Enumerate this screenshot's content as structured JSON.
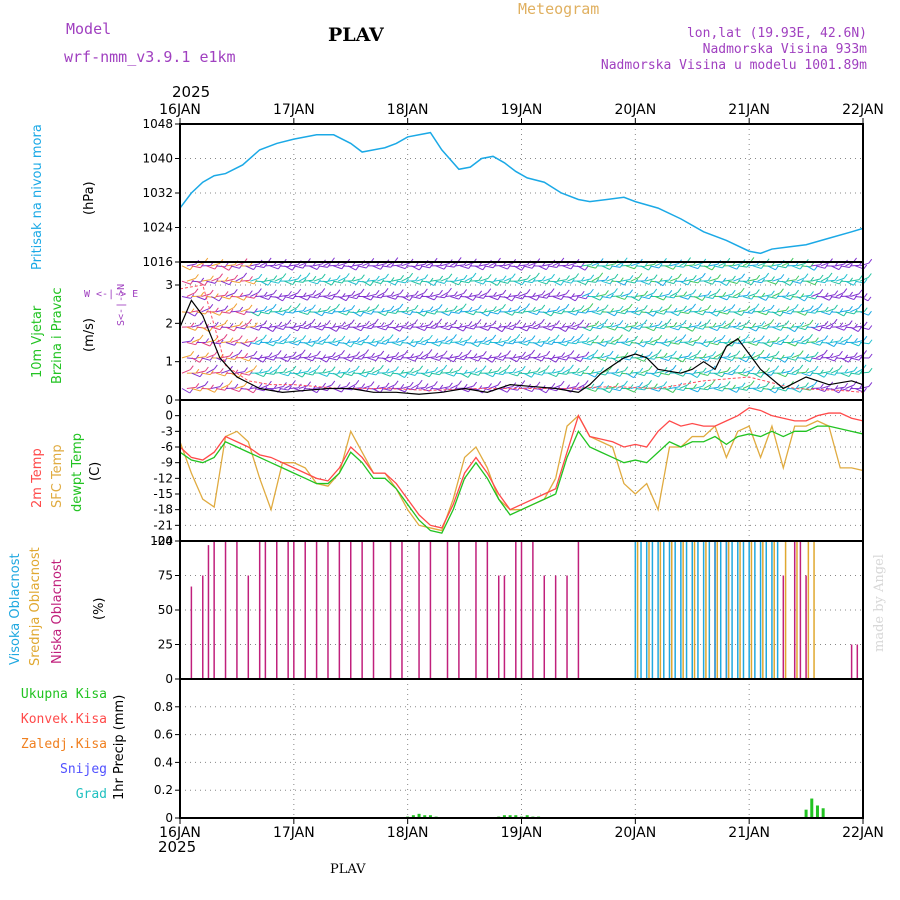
{
  "header": {
    "model_label": "Model",
    "model_name": "wrf-nmm_v3.9.1 e1km",
    "station": "PLAV",
    "meteogram": "Meteogram",
    "lonlat": "lon,lat (19.93E, 42.6N)",
    "elevation": "Nadmorska Visina 933m",
    "model_elevation": "Nadmorska Visina u modelu 1001.89m"
  },
  "footer": {
    "station": "PLAV",
    "credit": "made by Angel"
  },
  "colors": {
    "pressure": "#1ba9e6",
    "t2m": "#ff4a4a",
    "sfc": "#e0ab40",
    "dewpoint": "#22c322",
    "high_cloud": "#20a8e0",
    "mid_cloud": "#e0a830",
    "low_cloud": "#c0207c",
    "wind_speed_line": "#000000",
    "total_precip": "#22c322"
  },
  "x_axis": {
    "year": "2025",
    "ticks": [
      "16JAN",
      "17JAN",
      "18JAN",
      "19JAN",
      "20JAN",
      "21JAN",
      "22JAN"
    ]
  },
  "chart_data": [
    {
      "type": "line",
      "ylabel_title": "Pritisak na nivou mora",
      "ylabel_units": "(hPa)",
      "ylim": [
        1016,
        1048
      ],
      "yticks": [
        1016,
        1024,
        1032,
        1040,
        1048
      ],
      "grid": true,
      "x_days": [
        0,
        0.1,
        0.2,
        0.3,
        0.4,
        0.55,
        0.7,
        0.85,
        1.0,
        1.2,
        1.35,
        1.5,
        1.6,
        1.7,
        1.8,
        1.9,
        2.0,
        2.1,
        2.2,
        2.3,
        2.45,
        2.55,
        2.65,
        2.75,
        2.85,
        2.95,
        3.05,
        3.2,
        3.35,
        3.5,
        3.6,
        3.75,
        3.9,
        4.0,
        4.2,
        4.4,
        4.6,
        4.8,
        5.0,
        5.1,
        5.2,
        5.35,
        5.5,
        5.7,
        5.9,
        6.0
      ],
      "series": [
        {
          "values": [
            1028.5,
            1032,
            1034.5,
            1036,
            1036.5,
            1038.5,
            1042,
            1043.5,
            1044.5,
            1045.5,
            1045.5,
            1043.5,
            1041.5,
            1042,
            1042.5,
            1043.5,
            1045,
            1045.5,
            1046,
            1042,
            1037.5,
            1038,
            1040,
            1040.5,
            1039,
            1037,
            1035.5,
            1034.5,
            1032,
            1030.5,
            1030,
            1030.5,
            1031,
            1030,
            1028.5,
            1026,
            1023,
            1021,
            1018.5,
            1018,
            1019,
            1019.5,
            1020,
            1021.5,
            1023,
            1023.8
          ]
        }
      ]
    },
    {
      "type": "barbs",
      "ylabel_title": "10m Vjetar",
      "ylabel_sub": "Brzina i Pravac",
      "ylabel_units": "(m/s)",
      "direction_key": "W <-|-> E",
      "direction_key_ns": "S<-|->N",
      "ylim": [
        0,
        3.6
      ],
      "yticks": [
        0,
        1,
        2,
        3
      ],
      "grid": true,
      "barb_levels": [
        0.3,
        0.7,
        1.1,
        1.5,
        1.9,
        2.3,
        2.7,
        3.1,
        3.5
      ],
      "speed_line": {
        "x_days": [
          0,
          0.1,
          0.2,
          0.35,
          0.5,
          0.7,
          0.9,
          1.1,
          1.3,
          1.5,
          1.7,
          1.9,
          2.1,
          2.3,
          2.5,
          2.7,
          2.9,
          3.1,
          3.3,
          3.5,
          3.6,
          3.7,
          3.8,
          3.9,
          4.0,
          4.1,
          4.2,
          4.4,
          4.5,
          4.6,
          4.7,
          4.8,
          4.9,
          5.0,
          5.1,
          5.3,
          5.5,
          5.7,
          5.9,
          6.0
        ],
        "values": [
          1.9,
          2.6,
          2.2,
          1.1,
          0.6,
          0.3,
          0.2,
          0.25,
          0.3,
          0.3,
          0.2,
          0.2,
          0.15,
          0.2,
          0.3,
          0.2,
          0.4,
          0.35,
          0.3,
          0.2,
          0.4,
          0.7,
          0.9,
          1.1,
          1.2,
          1.1,
          0.8,
          0.7,
          0.8,
          1.0,
          0.8,
          1.4,
          1.6,
          1.2,
          0.8,
          0.3,
          0.6,
          0.4,
          0.5,
          0.4
        ]
      },
      "gust_line": {
        "x_days": [
          0,
          0.2,
          0.4,
          0.6,
          0.8,
          1.0,
          1.4,
          1.8,
          2.2,
          2.6,
          3.0,
          3.4,
          3.8,
          4.2,
          4.6,
          5.0,
          5.4,
          5.8,
          6.0
        ],
        "values": [
          2.9,
          3.0,
          0.9,
          0.5,
          0.4,
          0.4,
          0.3,
          0.3,
          0.25,
          0.3,
          0.3,
          0.3,
          0.35,
          0.3,
          0.5,
          0.6,
          0.3,
          0.25,
          0.2
        ]
      }
    },
    {
      "type": "line",
      "ylabel_t2m": "2m Temp",
      "ylabel_sfc": "SFC Temp",
      "ylabel_dew": "dewpt Temp",
      "ylabel_units": "(C)",
      "ylim": [
        -24,
        3
      ],
      "yticks": [
        0,
        -3,
        -6,
        -9,
        -12,
        -15,
        -18,
        -21,
        -24
      ],
      "grid": true,
      "x_days": [
        0,
        0.1,
        0.2,
        0.3,
        0.4,
        0.5,
        0.6,
        0.7,
        0.8,
        0.9,
        1.0,
        1.1,
        1.2,
        1.3,
        1.4,
        1.5,
        1.6,
        1.7,
        1.8,
        1.9,
        2.0,
        2.1,
        2.2,
        2.3,
        2.4,
        2.5,
        2.6,
        2.7,
        2.8,
        2.9,
        3.0,
        3.1,
        3.2,
        3.3,
        3.4,
        3.5,
        3.6,
        3.7,
        3.8,
        3.9,
        4.0,
        4.1,
        4.2,
        4.3,
        4.4,
        4.5,
        4.6,
        4.7,
        4.8,
        4.9,
        5.0,
        5.1,
        5.2,
        5.3,
        5.4,
        5.5,
        5.6,
        5.7,
        5.8,
        5.9,
        6.0
      ],
      "series": [
        {
          "name": "2m Temp",
          "values": [
            -6,
            -8,
            -8.5,
            -7,
            -4,
            -5,
            -6,
            -7.5,
            -8,
            -9,
            -10,
            -11,
            -12,
            -12.5,
            -10,
            -6,
            -8,
            -11,
            -11,
            -13,
            -16,
            -19,
            -21,
            -21.5,
            -17,
            -11,
            -8,
            -11,
            -15,
            -18,
            -17,
            -16,
            -15,
            -14,
            -7,
            0,
            -4,
            -4.5,
            -5,
            -6,
            -5.5,
            -6,
            -3,
            -1,
            -2,
            -1.5,
            -2,
            -2,
            -1,
            0,
            1.5,
            1,
            0,
            -0.5,
            -1,
            -1,
            0,
            0.5,
            0.5,
            -0.5,
            -1
          ]
        },
        {
          "name": "SFC Temp",
          "values": [
            -5,
            -11,
            -16,
            -17.5,
            -4,
            -3,
            -5,
            -12,
            -18,
            -9,
            -9,
            -10,
            -13,
            -13.5,
            -11,
            -3,
            -7,
            -11,
            -11,
            -14,
            -18,
            -21,
            -21.5,
            -22,
            -16,
            -8,
            -6,
            -10,
            -16,
            -18,
            -18,
            -17,
            -16,
            -12,
            -2,
            0,
            -4,
            -5,
            -6,
            -13,
            -15,
            -13,
            -18,
            -6,
            -6,
            -4,
            -4,
            -2,
            -8,
            -3,
            -2,
            -8,
            -2,
            -10,
            -2,
            -2,
            -1,
            -2,
            -10,
            -10,
            -10.5
          ]
        },
        {
          "name": "dewpt Temp",
          "values": [
            -7,
            -8.5,
            -9,
            -8,
            -5,
            -6,
            -7,
            -8,
            -9,
            -10,
            -11,
            -12,
            -13,
            -13,
            -11,
            -7,
            -9,
            -12,
            -12,
            -14,
            -17,
            -20,
            -22,
            -22.5,
            -18,
            -12,
            -9,
            -12,
            -16,
            -19,
            -18,
            -17,
            -16,
            -15,
            -8,
            -3,
            -6,
            -7,
            -8,
            -9,
            -8.5,
            -9,
            -7,
            -5,
            -6,
            -5,
            -5,
            -4,
            -5.5,
            -4,
            -3.5,
            -4,
            -3,
            -4,
            -3,
            -3,
            -2,
            -2,
            -2.5,
            -3,
            -3.5
          ]
        }
      ]
    },
    {
      "type": "bar",
      "ylabel_high": "Visoka Oblacnost",
      "ylabel_mid": "Srednja Oblacnost",
      "ylabel_low": "Niska Oblacnost",
      "ylabel_units": "(%)",
      "ylim": [
        0,
        100
      ],
      "yticks": [
        0,
        25,
        50,
        75,
        100
      ],
      "grid": true,
      "series": [
        {
          "name": "Niska Oblacnost",
          "x_days": [
            0.1,
            0.2,
            0.25,
            0.3,
            0.4,
            0.5,
            0.6,
            0.7,
            0.75,
            0.85,
            0.95,
            1.0,
            1.1,
            1.2,
            1.3,
            1.4,
            1.5,
            1.6,
            1.7,
            1.85,
            1.95,
            2.1,
            2.2,
            2.35,
            2.45,
            2.6,
            2.7,
            2.8,
            2.85,
            2.95,
            3.0,
            3.1,
            3.2,
            3.3,
            3.4,
            3.5,
            4.7,
            4.8,
            5.3,
            5.4,
            5.45,
            5.5,
            5.9,
            5.95
          ],
          "values": [
            67,
            75,
            97,
            100,
            100,
            100,
            75,
            100,
            100,
            100,
            100,
            100,
            100,
            100,
            100,
            100,
            100,
            100,
            100,
            100,
            100,
            100,
            100,
            100,
            100,
            100,
            100,
            75,
            75,
            100,
            100,
            100,
            75,
            75,
            75,
            100,
            100,
            100,
            75,
            100,
            100,
            75,
            25,
            25
          ]
        },
        {
          "name": "Visoka Oblacnost",
          "x_days": [
            4.0,
            4.05,
            4.1,
            4.15,
            4.2,
            4.25,
            4.3,
            4.35,
            4.4,
            4.45,
            4.5,
            4.55,
            4.6,
            4.65,
            4.7,
            4.75,
            4.8,
            4.85,
            4.9,
            4.95,
            5.0,
            5.05,
            5.1,
            5.15,
            5.2,
            5.25
          ],
          "values": [
            100,
            100,
            100,
            100,
            100,
            100,
            100,
            100,
            100,
            100,
            100,
            100,
            100,
            100,
            100,
            100,
            100,
            100,
            100,
            100,
            100,
            100,
            100,
            100,
            100,
            100
          ]
        },
        {
          "name": "Srednja Oblacnost",
          "x_days": [
            4.02,
            4.12,
            4.22,
            4.32,
            4.42,
            4.52,
            4.62,
            4.72,
            4.82,
            4.92,
            5.02,
            5.12,
            5.22,
            5.32,
            5.42,
            5.52,
            5.57
          ],
          "values": [
            100,
            100,
            100,
            100,
            100,
            100,
            100,
            100,
            100,
            100,
            100,
            100,
            100,
            100,
            100,
            100,
            100
          ]
        }
      ]
    },
    {
      "type": "bar",
      "ylabel_units": "1hr Precip (mm)",
      "legend": [
        "Ukupna Kisa",
        "Konvek.Kisa",
        "Zaledj.Kisa",
        "Snijeg",
        "Grad"
      ],
      "legend_colors": [
        "#22c322",
        "#ff4a4a",
        "#f08020",
        "#5050ff",
        "#20c0c0"
      ],
      "ylim": [
        0,
        1.0
      ],
      "yticks": [
        0,
        0.2,
        0.4,
        0.6,
        0.8
      ],
      "grid": true,
      "series": [
        {
          "name": "Ukupna Kisa",
          "x_days": [
            2.0,
            2.05,
            2.1,
            2.15,
            2.2,
            2.25,
            2.8,
            2.85,
            2.9,
            2.95,
            3.0,
            3.05,
            3.1,
            3.15,
            5.5,
            5.55,
            5.6,
            5.65
          ],
          "values": [
            0.01,
            0.02,
            0.03,
            0.02,
            0.02,
            0.01,
            0.01,
            0.02,
            0.02,
            0.02,
            0.01,
            0.02,
            0.01,
            0.01,
            0.06,
            0.14,
            0.09,
            0.07
          ]
        }
      ]
    }
  ]
}
